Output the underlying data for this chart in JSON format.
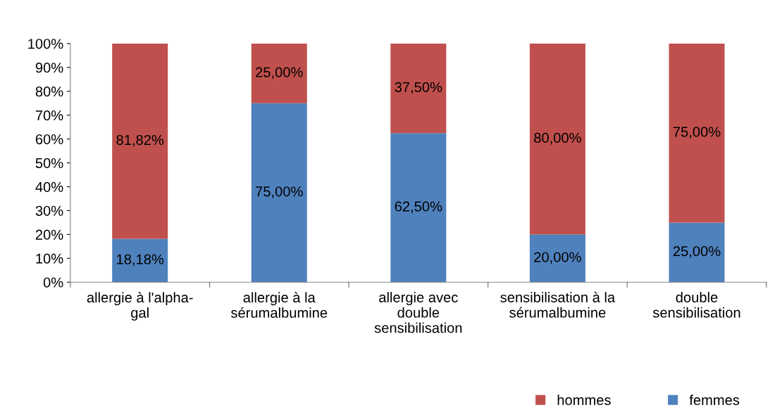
{
  "chart_data": {
    "type": "bar",
    "stacked": true,
    "categories": [
      "allergie à l'alpha-\ngal",
      "allergie à la\nsérumalbumine",
      "allergie avec\ndouble\nsensibilisation",
      "sensibilisation à la\nsérumalbumine",
      "double\nsensibilisation"
    ],
    "series": [
      {
        "name": "femmes",
        "color": "#4f81bd",
        "values": [
          18.18,
          75,
          62.5,
          20,
          25
        ],
        "value_labels": [
          "18,18%",
          "75,00%",
          "62,50%",
          "20,00%",
          "25,00%"
        ]
      },
      {
        "name": "hommes",
        "color": "#c0504d",
        "values": [
          81.82,
          25,
          37.5,
          80,
          75
        ],
        "value_labels": [
          "81,82%",
          "25,00%",
          "37,50%",
          "80,00%",
          "75,00%"
        ]
      }
    ],
    "ylim": [
      0,
      100
    ],
    "yticks": [
      {
        "value": 0,
        "label": "0%"
      },
      {
        "value": 10,
        "label": "10%"
      },
      {
        "value": 20,
        "label": "20%"
      },
      {
        "value": 30,
        "label": "30%"
      },
      {
        "value": 40,
        "label": "40%"
      },
      {
        "value": 50,
        "label": "50%"
      },
      {
        "value": 60,
        "label": "60%"
      },
      {
        "value": 70,
        "label": "70%"
      },
      {
        "value": 80,
        "label": "80%"
      },
      {
        "value": 90,
        "label": "90%"
      },
      {
        "value": 100,
        "label": "100%"
      }
    ],
    "legend": "bottom",
    "grid": false
  }
}
